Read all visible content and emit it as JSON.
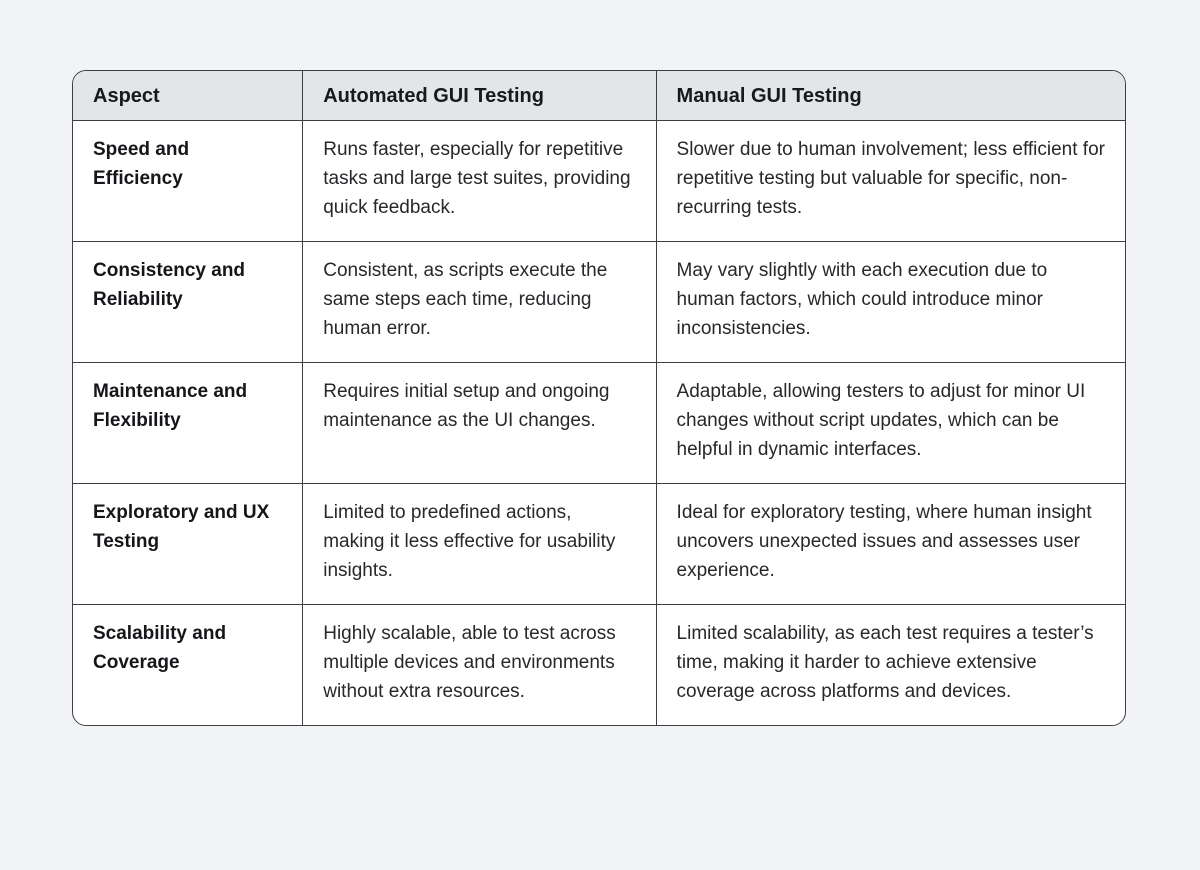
{
  "page": {
    "background_color": "#f1f3f6"
  },
  "table": {
    "colors": {
      "header_background": "#e3e5e8",
      "border": "#3d4043",
      "body_background": "#ffffff"
    },
    "columns": [
      {
        "label": "Aspect"
      },
      {
        "label": "Automated GUI Testing"
      },
      {
        "label": "Manual GUI Testing"
      }
    ],
    "rows": [
      {
        "aspect": "Speed and Efficiency",
        "automated": "Runs faster, especially for repetitive tasks and large test suites, providing quick feedback.",
        "manual": "Slower due to human involvement; less efficient for repetitive testing but valuable for specific, non-recurring tests."
      },
      {
        "aspect": "Consistency and Reliability",
        "automated": "Consistent, as scripts execute the same steps each time, reducing human error.",
        "manual": "May vary slightly with each execution due to human factors, which could introduce minor inconsistencies."
      },
      {
        "aspect": "Maintenance and Flexibility",
        "automated": "Requires initial setup and ongoing maintenance as the UI changes.",
        "manual": "Adaptable, allowing testers to adjust for minor UI changes without script updates, which can be helpful in dynamic interfaces."
      },
      {
        "aspect": "Exploratory and UX Testing",
        "automated": "Limited to predefined actions, making it less effective for usability insights.",
        "manual": "Ideal for exploratory testing, where human insight uncovers unexpected issues and assesses user experience."
      },
      {
        "aspect": "Scalability and Coverage",
        "automated": "Highly scalable, able to test across multiple devices and environments without extra resources.",
        "manual": "Limited scalability, as each test requires a tester’s time, making it harder to achieve extensive coverage across platforms and devices."
      }
    ]
  }
}
